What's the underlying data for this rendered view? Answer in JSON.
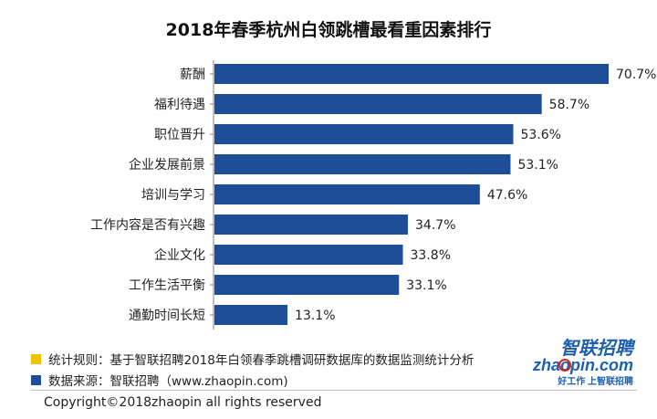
{
  "chart_data": {
    "type": "bar",
    "orientation": "horizontal",
    "title": "2018年春季杭州白领跳槽最看重因素排行",
    "categories": [
      "薪酬",
      "福利待遇",
      "职位晋升",
      "企业发展前景",
      "培训与学习",
      "工作内容是否有兴趣",
      "企业文化",
      "工作生活平衡",
      "通勤时间长短"
    ],
    "values": [
      70.7,
      58.7,
      53.6,
      53.1,
      47.6,
      34.7,
      33.8,
      33.1,
      13.1
    ],
    "value_labels": [
      "70.7%",
      "58.7%",
      "53.6%",
      "53.1%",
      "47.6%",
      "34.7%",
      "33.8%",
      "33.1%",
      "13.1%"
    ],
    "unit": "%",
    "xlim": [
      0,
      80
    ],
    "grid": false,
    "legend": false,
    "bar_color": "#1f4e99"
  },
  "footnotes": [
    {
      "text": "统计规则：基于智联招聘2018年白领春季跳槽调研数据库的数据监测统计分析",
      "color": "#f2c200"
    },
    {
      "text": "数据来源：智联招聘（www.zhaopin.com)",
      "color": "#1f4e99"
    }
  ],
  "copyright": "Copyright©2018zhaopin all rights reserved",
  "logo": {
    "name_cn": "智联招聘",
    "domain": "zhaopin.com",
    "slogan": "好工作 上智联招聘",
    "colors": {
      "blue": "#1f5fb0",
      "orange": "#f08300",
      "red": "#d9261c"
    }
  }
}
